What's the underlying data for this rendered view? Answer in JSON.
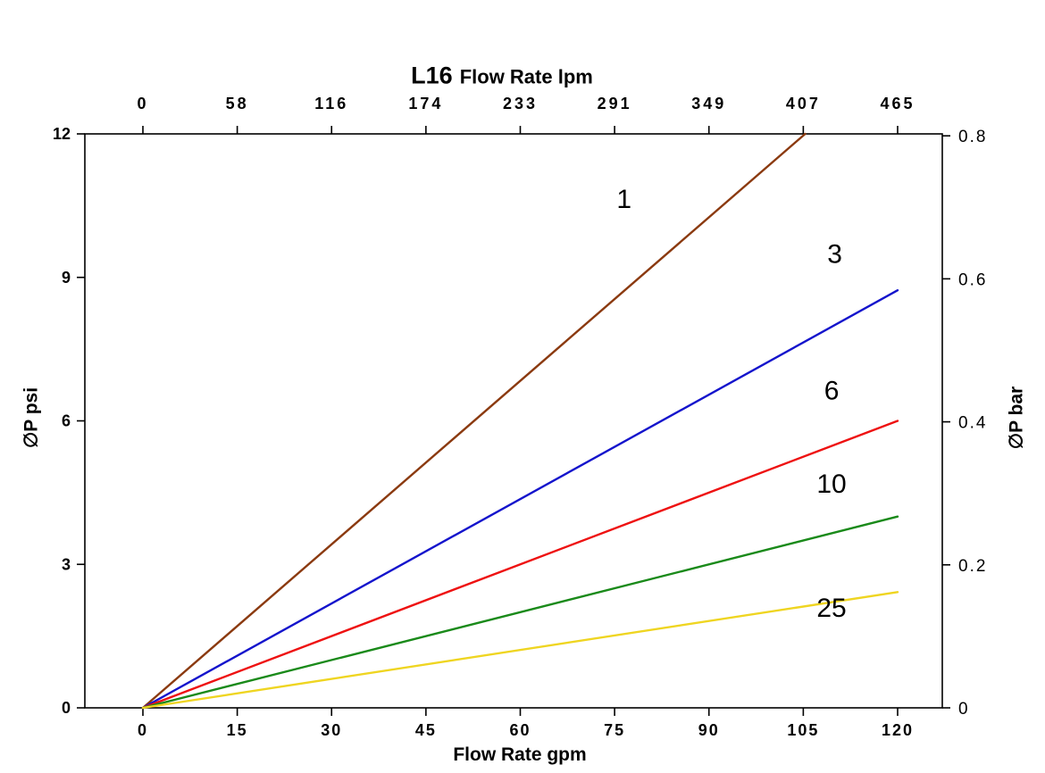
{
  "chart": {
    "title_model": "L16",
    "title_text": "Flow Rate lpm",
    "left_axis_label": "∅P psi",
    "right_axis_label": "∅P bar",
    "bottom_axis_label": "Flow Rate gpm"
  },
  "chart_data": {
    "type": "line",
    "title": "L16 Flow Rate lpm",
    "x_bottom": {
      "label": "Flow Rate gpm",
      "ticks": [
        0,
        15,
        30,
        45,
        60,
        75,
        90,
        105,
        120
      ],
      "range": [
        0,
        120
      ]
    },
    "x_top": {
      "label": "Flow Rate lpm",
      "ticks": [
        0,
        58,
        116,
        174,
        233,
        291,
        349,
        407,
        465
      ]
    },
    "y_left": {
      "label": "∅P psi",
      "ticks": [
        0,
        3,
        6,
        9,
        12
      ],
      "range": [
        0,
        12
      ]
    },
    "y_right": {
      "label": "∅P bar",
      "ticks": [
        0,
        0.2,
        0.4,
        0.6,
        0.8
      ],
      "range": [
        0,
        0.8027
      ]
    },
    "grid": false,
    "legend": "inline-labels",
    "series": [
      {
        "name": "1",
        "color": "#8B3A10",
        "points": [
          [
            0,
            0
          ],
          [
            105.3,
            12
          ]
        ],
        "label_at": [
          76.5,
          10.45
        ]
      },
      {
        "name": "3",
        "color": "#1414CC",
        "points": [
          [
            0,
            0
          ],
          [
            120,
            8.73
          ]
        ],
        "label_at": [
          110.0,
          9.3
        ]
      },
      {
        "name": "6",
        "color": "#EE1111",
        "points": [
          [
            0,
            0
          ],
          [
            120,
            6.0
          ]
        ],
        "label_at": [
          109.5,
          6.45
        ]
      },
      {
        "name": "10",
        "color": "#1A8A1A",
        "points": [
          [
            0,
            0
          ],
          [
            120,
            4.0
          ]
        ],
        "label_at": [
          109.5,
          4.5
        ]
      },
      {
        "name": "25",
        "color": "#EFD521",
        "points": [
          [
            0,
            0
          ],
          [
            120,
            2.42
          ]
        ],
        "label_at": [
          109.5,
          1.9
        ]
      }
    ]
  }
}
